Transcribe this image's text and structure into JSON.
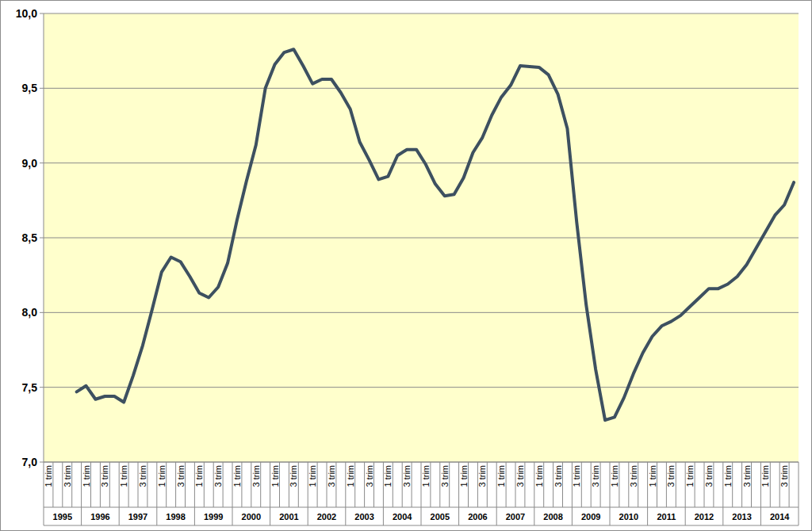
{
  "chart_data": {
    "type": "line",
    "categories": [
      "1 trim",
      null,
      "3 trim",
      null,
      "1 trim",
      null,
      "3 trim",
      null,
      "1 trim",
      null,
      "3 trim",
      null,
      "1 trim",
      null,
      "3 trim",
      null,
      "1 trim",
      null,
      "3 trim",
      null,
      "1 trim",
      null,
      "3 trim",
      null,
      "1 trim",
      null,
      "3 trim",
      null,
      "1 trim",
      null,
      "3 trim",
      null,
      "1 trim",
      null,
      "3 trim",
      null,
      "1 trim",
      null,
      "3 trim",
      null,
      "1 trim",
      null,
      "3 trim",
      null,
      "1 trim",
      null,
      "3 trim",
      null,
      "1 trim",
      null,
      "3 trim",
      null,
      "1 trim",
      null,
      "3 trim",
      null,
      "1 trim",
      null,
      "3 trim",
      null,
      "1 trim",
      null,
      "3 trim",
      null,
      "1 trim",
      null,
      "3 trim",
      null,
      "1 trim",
      null,
      "3 trim",
      null,
      "1 trim",
      null,
      "3 trim",
      null,
      "1 trim",
      null,
      "3 trim",
      null
    ],
    "year_labels": [
      "1995",
      "1996",
      "1997",
      "1998",
      "1999",
      "2000",
      "2001",
      "2002",
      "2003",
      "2004",
      "2005",
      "2006",
      "2007",
      "2008",
      "2009",
      "2010",
      "2011",
      "2012",
      "2013",
      "2014"
    ],
    "values": [
      null,
      null,
      null,
      7.47,
      7.51,
      7.42,
      7.44,
      7.44,
      7.4,
      7.58,
      7.78,
      8.02,
      8.27,
      8.37,
      8.34,
      8.24,
      8.13,
      8.1,
      8.17,
      8.33,
      8.62,
      8.88,
      9.12,
      9.5,
      9.66,
      9.74,
      9.76,
      9.65,
      9.53,
      9.56,
      9.56,
      9.47,
      9.36,
      9.14,
      9.02,
      8.89,
      8.91,
      9.05,
      9.09,
      9.09,
      8.99,
      8.86,
      8.78,
      8.79,
      8.9,
      9.07,
      9.17,
      9.32,
      9.44,
      9.52,
      9.65,
      9.645,
      9.64,
      9.59,
      9.46,
      9.23,
      8.6,
      8.05,
      7.62,
      7.28,
      7.3,
      7.43,
      7.59,
      7.73,
      7.84,
      7.91,
      7.94,
      7.98,
      8.04,
      8.1,
      8.16,
      8.16,
      8.19,
      8.24,
      8.32,
      8.43,
      8.54,
      8.65,
      8.72,
      8.87
    ],
    "color": "#3d5060",
    "ylim": [
      7,
      10
    ],
    "yticks": [
      {
        "value": 7,
        "label": "7,0"
      },
      {
        "value": 7.5,
        "label": "7,5"
      },
      {
        "value": 8,
        "label": "8,0"
      },
      {
        "value": 8.5,
        "label": "8,5"
      },
      {
        "value": 9,
        "label": "9,0"
      },
      {
        "value": 9.5,
        "label": "9,5"
      },
      {
        "value": 10,
        "label": "10,0"
      }
    ],
    "grid": true
  }
}
